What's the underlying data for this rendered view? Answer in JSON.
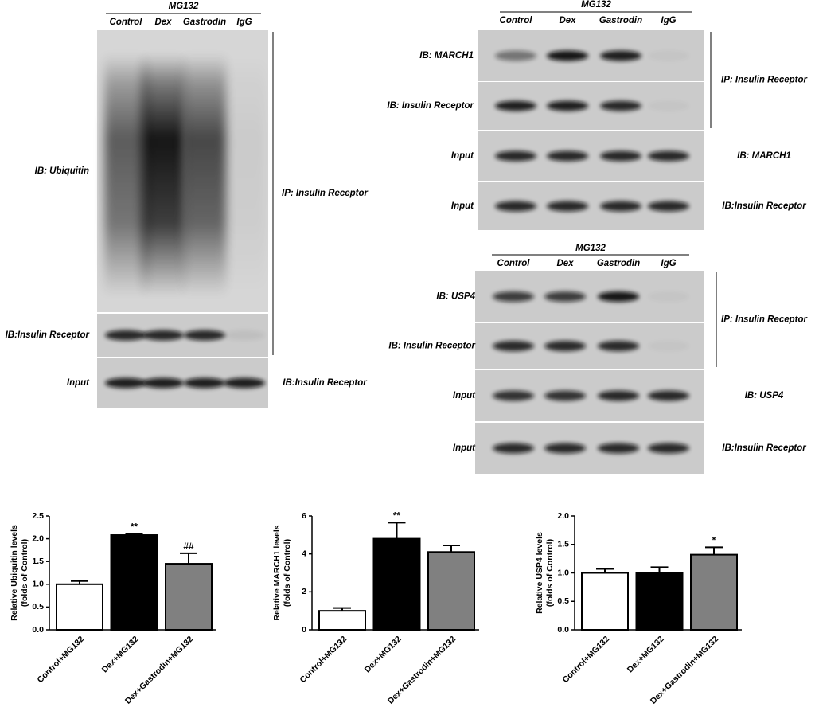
{
  "blots": [
    {
      "treatment": "MG132",
      "lanes": [
        "Control",
        "Dex",
        "Gastrodin",
        "IgG"
      ],
      "row_labels": [
        "IB: Ubiquitin",
        "IB:Insulin Receptor",
        "Input"
      ],
      "ip_label": "IP: Insulin Receptor",
      "input_labels": [
        "IB:Insulin Receptor"
      ]
    },
    {
      "treatment": "MG132",
      "lanes": [
        "Control",
        "Dex",
        "Gastrodin",
        "IgG"
      ],
      "row_labels": [
        "IB: MARCH1",
        "IB: Insulin Receptor",
        "Input",
        "Input"
      ],
      "ip_label": "IP: Insulin Receptor",
      "input_labels": [
        "IB: MARCH1",
        "IB:Insulin Receptor"
      ]
    },
    {
      "treatment": "MG132",
      "lanes": [
        "Control",
        "Dex",
        "Gastrodin",
        "IgG"
      ],
      "row_labels": [
        "IB: USP4",
        "IB: Insulin Receptor",
        "Input",
        "Input"
      ],
      "ip_label": "IP: Insulin Receptor",
      "input_labels": [
        "IB: USP4",
        "IB:Insulin Receptor"
      ]
    }
  ],
  "chart_data": [
    {
      "type": "bar",
      "ylabel": [
        "Relative Ubiquitin levels",
        "(folds of Control)"
      ],
      "categories": [
        "Control+MG132",
        "Dex+MG132",
        "Dex+Gastrodin+MG132"
      ],
      "values": [
        1.0,
        2.08,
        1.45
      ],
      "errors": [
        0.07,
        0.03,
        0.23
      ],
      "annotations": [
        null,
        "**",
        "##"
      ],
      "colors": [
        "#ffffff",
        "#000000",
        "#808080"
      ],
      "ylim": [
        0,
        2.5
      ],
      "yticks": [
        {
          "value": 0,
          "label": "0.0"
        },
        {
          "value": 0.5,
          "label": "0.5"
        },
        {
          "value": 1,
          "label": "1.0"
        },
        {
          "value": 1.5,
          "label": "1.5"
        },
        {
          "value": 2,
          "label": "2.0"
        },
        {
          "value": 2.5,
          "label": "2.5"
        }
      ]
    },
    {
      "type": "bar",
      "ylabel": [
        "Relative MARCH1 levels",
        "(folds of Control)"
      ],
      "categories": [
        "Control+MG132",
        "Dex+MG132",
        "Dex+Gastrodin+MG132"
      ],
      "values": [
        1.0,
        4.8,
        4.1
      ],
      "errors": [
        0.15,
        0.85,
        0.35
      ],
      "annotations": [
        null,
        "**",
        null
      ],
      "colors": [
        "#ffffff",
        "#000000",
        "#808080"
      ],
      "ylim": [
        0,
        6
      ],
      "yticks": [
        0,
        2,
        4,
        6
      ]
    },
    {
      "type": "bar",
      "ylabel": [
        "Relative USP4 levels",
        "(folds of Control)"
      ],
      "categories": [
        "Control+MG132",
        "Dex+MG132",
        "Dex+Gastrodin+MG132"
      ],
      "values": [
        1.0,
        1.0,
        1.32
      ],
      "errors": [
        0.07,
        0.1,
        0.13
      ],
      "annotations": [
        null,
        null,
        "*"
      ],
      "colors": [
        "#ffffff",
        "#000000",
        "#808080"
      ],
      "ylim": [
        0,
        2
      ],
      "yticks": [
        {
          "value": 0,
          "label": "0.0"
        },
        {
          "value": 0.5,
          "label": "0.5"
        },
        {
          "value": 1,
          "label": "1.0"
        },
        {
          "value": 1.5,
          "label": "1.5"
        },
        {
          "value": 2,
          "label": "2.0"
        }
      ]
    }
  ]
}
